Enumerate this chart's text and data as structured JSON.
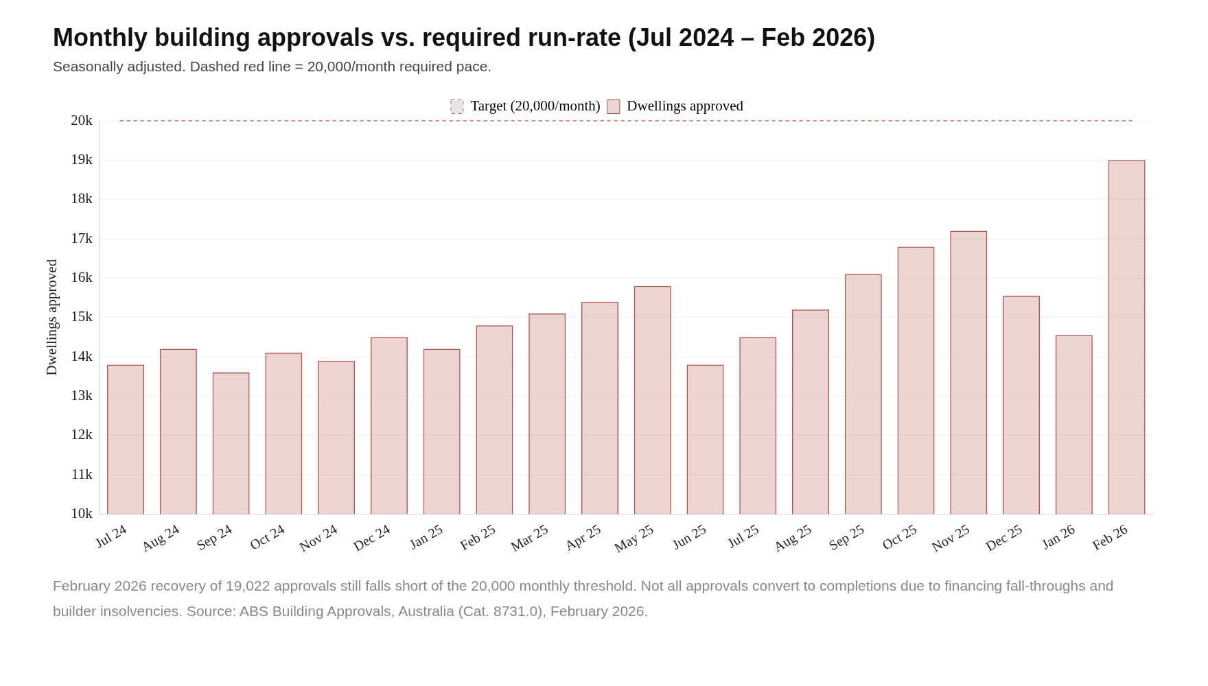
{
  "chart_data": {
    "type": "bar",
    "title": "Monthly building approvals vs. required run-rate (Jul 2024 – Feb 2026)",
    "subtitle": "Seasonally adjusted. Dashed red line = 20,000/month required pace.",
    "ylabel": "Dwellings approved",
    "categories": [
      "Jul 24",
      "Aug 24",
      "Sep 24",
      "Oct 24",
      "Nov 24",
      "Dec 24",
      "Jan 25",
      "Feb 25",
      "Mar 25",
      "Apr 25",
      "May 25",
      "Jun 25",
      "Jul 25",
      "Aug 25",
      "Sep 25",
      "Oct 25",
      "Nov 25",
      "Dec 25",
      "Jan 26",
      "Feb 26"
    ],
    "series": [
      {
        "name": "Dwellings approved",
        "color": "#b5524a",
        "values": [
          13800,
          14200,
          13600,
          14100,
          13900,
          14500,
          14200,
          14800,
          15100,
          15400,
          15800,
          13800,
          14500,
          15200,
          16100,
          16800,
          17200,
          15550,
          14550,
          19000
        ]
      }
    ],
    "ylim": [
      10000,
      20000
    ],
    "yticks": [
      {
        "value": 10000,
        "label": "10k"
      },
      {
        "value": 11000,
        "label": "11k"
      },
      {
        "value": 12000,
        "label": "12k"
      },
      {
        "value": 13000,
        "label": "13k"
      },
      {
        "value": 14000,
        "label": "14k"
      },
      {
        "value": 15000,
        "label": "15k"
      },
      {
        "value": 16000,
        "label": "16k"
      },
      {
        "value": 17000,
        "label": "17k"
      },
      {
        "value": 18000,
        "label": "18k"
      },
      {
        "value": 19000,
        "label": "19k"
      },
      {
        "value": 20000,
        "label": "20k"
      }
    ],
    "ref_lines": [
      {
        "axis": "y",
        "value": 20000,
        "label": "Target (20,000/month)",
        "color": "#c0625a",
        "line_style": "dashed"
      }
    ],
    "grid": "y",
    "legend": "top",
    "annotations": [
      "February 2026 recovery of 19,022 approvals still falls short of the 20,000 monthly threshold. Not all approvals convert to completions due to financing fall-throughs and builder insolvencies. Source: ABS Building Approvals, Australia (Cat. 8731.0), February 2026."
    ]
  }
}
